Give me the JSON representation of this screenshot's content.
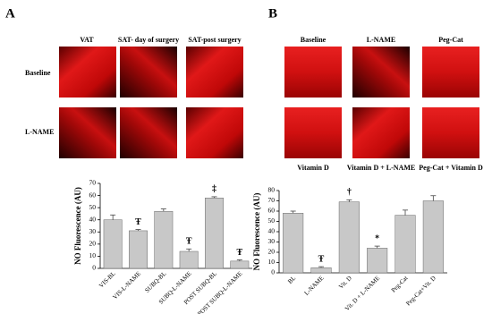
{
  "figure": {
    "panel_a": {
      "label": "A",
      "columns": [
        "VAT",
        "SAT- day of surgery",
        "SAT-post surgery"
      ],
      "rows": [
        "Baseline",
        "L-NAME"
      ]
    },
    "panel_b": {
      "label": "B",
      "columns": [
        "Baseline",
        "L-NAME",
        "Peg-Cat"
      ],
      "captions": [
        "Vitamin D",
        "Vitamin D + L-NAME",
        "Peg-Cat + Vitamin D"
      ]
    }
  },
  "chart_data": [
    {
      "type": "bar",
      "y_label": "NO Fluorescence (AU)",
      "categories": [
        "VIS-BL",
        "VIS-L-NAME",
        "SUBQ-BL",
        "SUBQ-L-NAME",
        "POST SUBQ-BL",
        "POST SUBQ-L-NAME"
      ],
      "values": [
        40,
        31,
        47,
        14,
        58,
        6
      ],
      "errors": [
        4,
        1,
        2,
        2,
        1,
        1
      ],
      "bar_marks": [
        null,
        "Ŧ",
        null,
        "Ŧ",
        "‡",
        "Ŧ"
      ],
      "color": "#c8c8c8",
      "ylim": [
        0,
        70
      ],
      "yticks": [
        0,
        10,
        20,
        30,
        40,
        50,
        60,
        70
      ]
    },
    {
      "type": "bar",
      "y_label": "NO Fluorescence (AU)",
      "categories": [
        "BL",
        "L-NAME",
        "Vit. D",
        "Vit. D + L-NAME",
        "Peg-Cat",
        "Peg-Cat+Vit. D"
      ],
      "values": [
        58,
        5,
        69,
        24,
        56,
        70
      ],
      "errors": [
        2,
        1,
        2,
        2,
        5,
        5
      ],
      "bar_marks": [
        null,
        "Ŧ",
        "†",
        "*",
        null,
        null
      ],
      "color": "#c8c8c8",
      "ylim": [
        0,
        80
      ],
      "yticks": [
        0,
        10,
        20,
        30,
        40,
        50,
        60,
        70,
        80
      ]
    }
  ]
}
